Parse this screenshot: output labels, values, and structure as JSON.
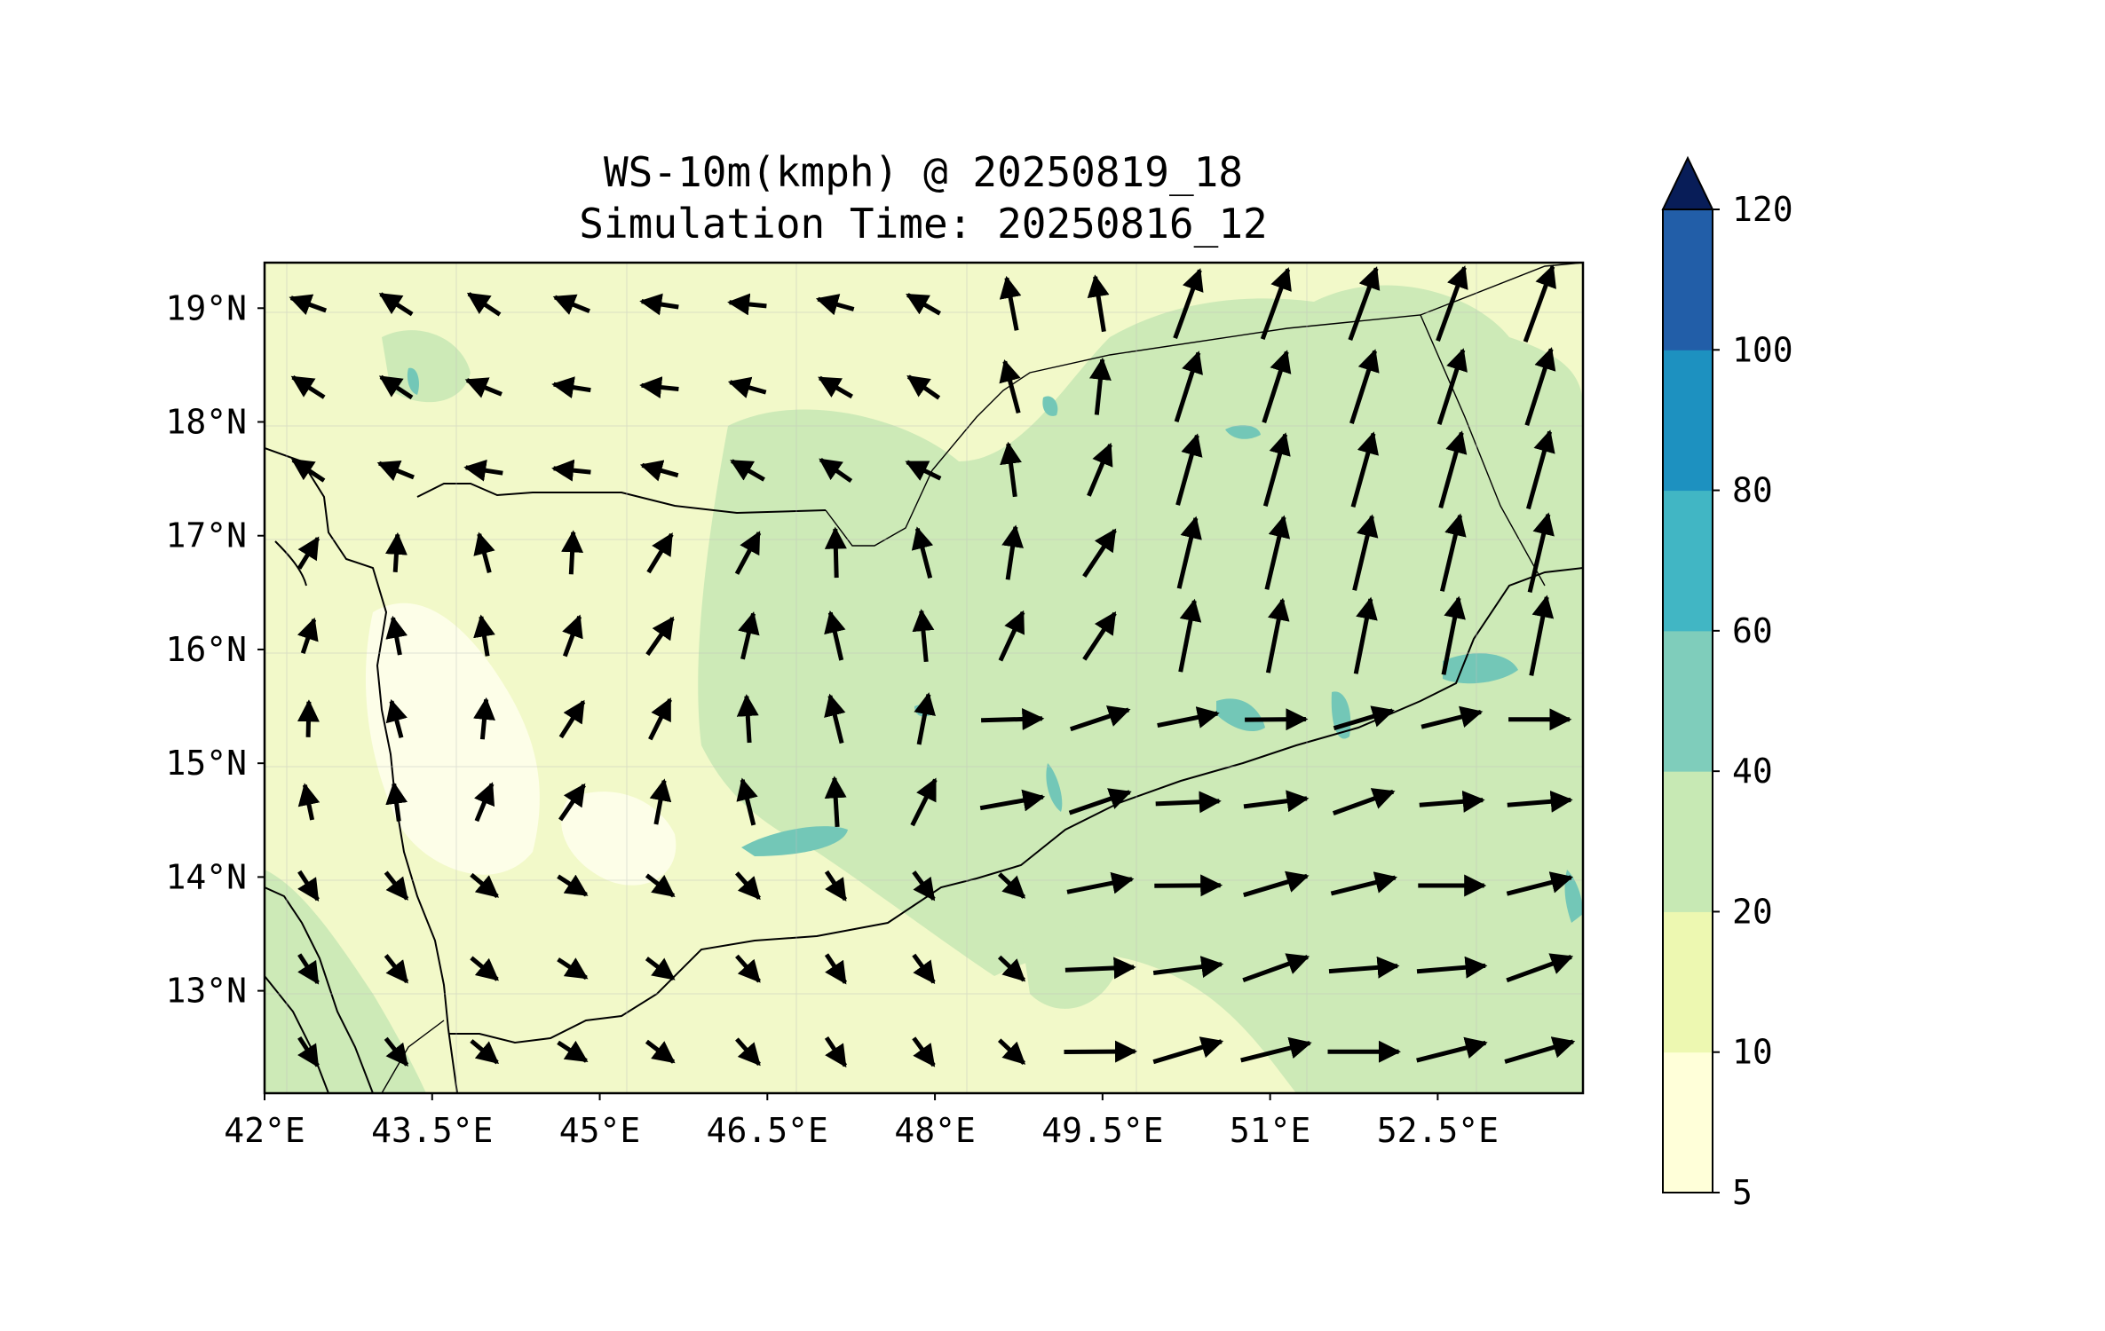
{
  "title": {
    "line1": "WS-10m(kmph) @ 20250819_18",
    "line2": "Simulation Time: 20250816_12"
  },
  "map": {
    "lon_range": [
      42.0,
      53.8
    ],
    "lat_range": [
      12.1,
      19.4
    ],
    "x_ticks": [
      {
        "value": 42.0,
        "label": "42°E"
      },
      {
        "value": 43.5,
        "label": "43.5°E"
      },
      {
        "value": 45.0,
        "label": "45°E"
      },
      {
        "value": 46.5,
        "label": "46.5°E"
      },
      {
        "value": 48.0,
        "label": "48°E"
      },
      {
        "value": 49.5,
        "label": "49.5°E"
      },
      {
        "value": 51.0,
        "label": "51°E"
      },
      {
        "value": 52.5,
        "label": "52.5°E"
      }
    ],
    "y_ticks": [
      {
        "value": 19,
        "label": "19°N"
      },
      {
        "value": 18,
        "label": "18°N"
      },
      {
        "value": 17,
        "label": "17°N"
      },
      {
        "value": 16,
        "label": "16°N"
      },
      {
        "value": 15,
        "label": "15°N"
      },
      {
        "value": 14,
        "label": "14°N"
      },
      {
        "value": 13,
        "label": "13°N"
      }
    ],
    "land_color": "#cdeab7",
    "base_color": "#f2f9c9",
    "coast_color": "#000000"
  },
  "colorbar": {
    "levels": [
      5,
      10,
      20,
      40,
      60,
      80,
      100,
      120
    ],
    "labels": [
      "5",
      "10",
      "20",
      "40",
      "60",
      "80",
      "100",
      "120"
    ],
    "colors": [
      "#ffffd9",
      "#edf8b1",
      "#c7e9b4",
      "#7fcdbb",
      "#41b6c4",
      "#1d91c0",
      "#225ea8",
      "#253494"
    ],
    "extend_color": "#081d58"
  }
}
